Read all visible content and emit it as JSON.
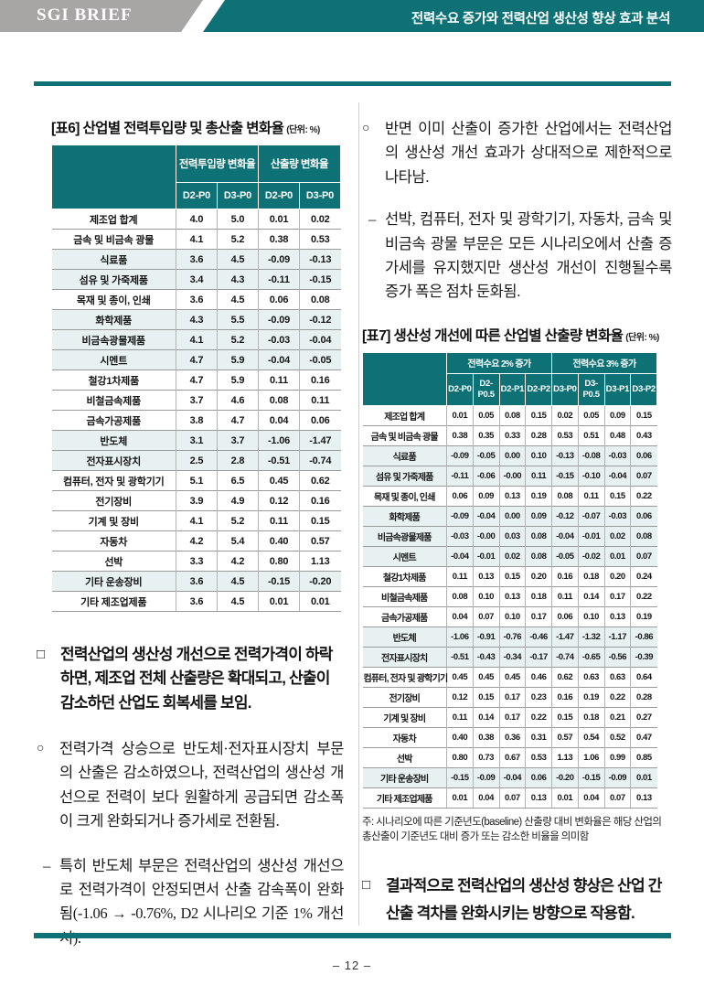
{
  "colors": {
    "teal": "#0e7176",
    "banner_gray": "#a8a6a4",
    "row_tint": "#e8f1f1"
  },
  "header": {
    "brand": "SGI BRIEF",
    "title": "전력수요 증가와 전력산업 생산성 향상 효과 분석"
  },
  "left": {
    "table6": {
      "caption": "[표6] 산업별 전력투입량 및 총산출 변화율",
      "unit": "(단위: %)",
      "col_groups": [
        {
          "label": "전력투입량 변화율",
          "span": 2
        },
        {
          "label": "산출량 변화율",
          "span": 2
        }
      ],
      "sub_headers": [
        "D2-P0",
        "D3-P0",
        "D2-P0",
        "D3-P0"
      ],
      "rows": [
        {
          "label": "제조업 합계",
          "values": [
            "4.0",
            "5.0",
            "0.01",
            "0.02"
          ],
          "bold": true,
          "tint": false
        },
        {
          "label": "금속 및 비금속 광물",
          "values": [
            "4.1",
            "5.2",
            "0.38",
            "0.53"
          ],
          "bold": false,
          "tint": false
        },
        {
          "label": "식료품",
          "values": [
            "3.6",
            "4.5",
            "-0.09",
            "-0.13"
          ],
          "bold": false,
          "tint": true
        },
        {
          "label": "섬유 및 가죽제품",
          "values": [
            "3.4",
            "4.3",
            "-0.11",
            "-0.15"
          ],
          "bold": false,
          "tint": true
        },
        {
          "label": "목재 및 종이, 인쇄",
          "values": [
            "3.6",
            "4.5",
            "0.06",
            "0.08"
          ],
          "bold": false,
          "tint": false
        },
        {
          "label": "화학제품",
          "values": [
            "4.3",
            "5.5",
            "-0.09",
            "-0.12"
          ],
          "bold": false,
          "tint": true
        },
        {
          "label": "비금속광물제품",
          "values": [
            "4.1",
            "5.2",
            "-0.03",
            "-0.04"
          ],
          "bold": false,
          "tint": true
        },
        {
          "label": "시멘트",
          "values": [
            "4.7",
            "5.9",
            "-0.04",
            "-0.05"
          ],
          "bold": false,
          "tint": true
        },
        {
          "label": "철강1차제품",
          "values": [
            "4.7",
            "5.9",
            "0.11",
            "0.16"
          ],
          "bold": false,
          "tint": false
        },
        {
          "label": "비철금속제품",
          "values": [
            "3.7",
            "4.6",
            "0.08",
            "0.11"
          ],
          "bold": false,
          "tint": false
        },
        {
          "label": "금속가공제품",
          "values": [
            "3.8",
            "4.7",
            "0.04",
            "0.06"
          ],
          "bold": false,
          "tint": false
        },
        {
          "label": "반도체",
          "values": [
            "3.1",
            "3.7",
            "-1.06",
            "-1.47"
          ],
          "bold": false,
          "tint": true
        },
        {
          "label": "전자표시장치",
          "values": [
            "2.5",
            "2.8",
            "-0.51",
            "-0.74"
          ],
          "bold": false,
          "tint": true
        },
        {
          "label": "컴퓨터, 전자 및 광학기기",
          "values": [
            "5.1",
            "6.5",
            "0.45",
            "0.62"
          ],
          "bold": false,
          "tint": false
        },
        {
          "label": "전기장비",
          "values": [
            "3.9",
            "4.9",
            "0.12",
            "0.16"
          ],
          "bold": false,
          "tint": false
        },
        {
          "label": "기계 및 장비",
          "values": [
            "4.1",
            "5.2",
            "0.11",
            "0.15"
          ],
          "bold": false,
          "tint": false
        },
        {
          "label": "자동차",
          "values": [
            "4.2",
            "5.4",
            "0.40",
            "0.57"
          ],
          "bold": false,
          "tint": false
        },
        {
          "label": "선박",
          "values": [
            "3.3",
            "4.2",
            "0.80",
            "1.13"
          ],
          "bold": false,
          "tint": false
        },
        {
          "label": "기타 운송장비",
          "values": [
            "3.6",
            "4.5",
            "-0.15",
            "-0.20"
          ],
          "bold": false,
          "tint": true
        },
        {
          "label": "기타 제조업제품",
          "values": [
            "3.6",
            "4.5",
            "0.01",
            "0.01"
          ],
          "bold": false,
          "tint": false
        }
      ]
    },
    "paragraphs": [
      {
        "marker": "□",
        "style": "box",
        "text": "전력산업의 생산성 개선으로 전력가격이 하락하면, 제조업 전체 산출량은 확대되고, 산출이 감소하던 산업도 회복세를 보임."
      },
      {
        "marker": "○",
        "style": "circle",
        "text": "전력가격 상승으로 반도체·전자표시장치 부문의 산출은 감소하였으나, 전력산업의 생산성 개선으로 전력이 보다 원활하게 공급되면 감소폭이 크게 완화되거나 증가세로 전환됨."
      },
      {
        "marker": "–",
        "style": "dash",
        "text": "특히 반도체 부문은 전력산업의 생산성 개선으로 전력가격이 안정되면서 산출 감속폭이 완화됨(-1.06 → -0.76%, D2 시나리오 기준 1% 개선 시)."
      }
    ]
  },
  "right": {
    "paragraphs_top": [
      {
        "marker": "○",
        "style": "circle",
        "text": "반면 이미 산출이 증가한 산업에서는 전력산업의 생산성 개선 효과가 상대적으로 제한적으로 나타남."
      },
      {
        "marker": "–",
        "style": "dash",
        "text": "선박, 컴퓨터, 전자 및 광학기기, 자동차, 금속 및 비금속 광물 부문은 모든 시나리오에서 산출 증가세를 유지했지만 생산성 개선이 진행될수록 증가 폭은 점차 둔화됨."
      }
    ],
    "table7": {
      "caption": "[표7] 생산성 개선에 따른 산업별 산출량 변화율",
      "unit": "(단위: %)",
      "col_groups": [
        {
          "label": "전력수요 2% 증가",
          "span": 4
        },
        {
          "label": "전력수요 3% 증가",
          "span": 4
        }
      ],
      "sub_headers": [
        "D2-P0",
        "D2-P0.5",
        "D2-P1",
        "D2-P2",
        "D3-P0",
        "D3-P0.5",
        "D3-P1",
        "D3-P2"
      ],
      "rows": [
        {
          "label": "제조업 합계",
          "values": [
            "0.01",
            "0.05",
            "0.08",
            "0.15",
            "0.02",
            "0.05",
            "0.09",
            "0.15"
          ],
          "bold": true,
          "tint": false
        },
        {
          "label": "금속 및 비금속 광물",
          "values": [
            "0.38",
            "0.35",
            "0.33",
            "0.28",
            "0.53",
            "0.51",
            "0.48",
            "0.43"
          ],
          "bold": false,
          "tint": false
        },
        {
          "label": "식료품",
          "values": [
            "-0.09",
            "-0.05",
            "0.00",
            "0.10",
            "-0.13",
            "-0.08",
            "-0.03",
            "0.06"
          ],
          "bold": false,
          "tint": true
        },
        {
          "label": "섬유 및 가죽제품",
          "values": [
            "-0.11",
            "-0.06",
            "-0.00",
            "0.11",
            "-0.15",
            "-0.10",
            "-0.04",
            "0.07"
          ],
          "bold": false,
          "tint": true
        },
        {
          "label": "목재 및 종이, 인쇄",
          "values": [
            "0.06",
            "0.09",
            "0.13",
            "0.19",
            "0.08",
            "0.11",
            "0.15",
            "0.22"
          ],
          "bold": false,
          "tint": false
        },
        {
          "label": "화학제품",
          "values": [
            "-0.09",
            "-0.04",
            "0.00",
            "0.09",
            "-0.12",
            "-0.07",
            "-0.03",
            "0.06"
          ],
          "bold": false,
          "tint": true
        },
        {
          "label": "비금속광물제품",
          "values": [
            "-0.03",
            "-0.00",
            "0.03",
            "0.08",
            "-0.04",
            "-0.01",
            "0.02",
            "0.08"
          ],
          "bold": false,
          "tint": true
        },
        {
          "label": "시멘트",
          "values": [
            "-0.04",
            "-0.01",
            "0.02",
            "0.08",
            "-0.05",
            "-0.02",
            "0.01",
            "0.07"
          ],
          "bold": false,
          "tint": true
        },
        {
          "label": "철강1차제품",
          "values": [
            "0.11",
            "0.13",
            "0.15",
            "0.20",
            "0.16",
            "0.18",
            "0.20",
            "0.24"
          ],
          "bold": false,
          "tint": false
        },
        {
          "label": "비철금속제품",
          "values": [
            "0.08",
            "0.10",
            "0.13",
            "0.18",
            "0.11",
            "0.14",
            "0.17",
            "0.22"
          ],
          "bold": false,
          "tint": false
        },
        {
          "label": "금속가공제품",
          "values": [
            "0.04",
            "0.07",
            "0.10",
            "0.17",
            "0.06",
            "0.10",
            "0.13",
            "0.19"
          ],
          "bold": false,
          "tint": false
        },
        {
          "label": "반도체",
          "values": [
            "-1.06",
            "-0.91",
            "-0.76",
            "-0.46",
            "-1.47",
            "-1.32",
            "-1.17",
            "-0.86"
          ],
          "bold": false,
          "tint": true
        },
        {
          "label": "전자표시장치",
          "values": [
            "-0.51",
            "-0.43",
            "-0.34",
            "-0.17",
            "-0.74",
            "-0.65",
            "-0.56",
            "-0.39"
          ],
          "bold": false,
          "tint": true
        },
        {
          "label": "컴퓨터, 전자 및 광학기기",
          "values": [
            "0.45",
            "0.45",
            "0.45",
            "0.46",
            "0.62",
            "0.63",
            "0.63",
            "0.64"
          ],
          "bold": false,
          "tint": false
        },
        {
          "label": "전기장비",
          "values": [
            "0.12",
            "0.15",
            "0.17",
            "0.23",
            "0.16",
            "0.19",
            "0.22",
            "0.28"
          ],
          "bold": false,
          "tint": false
        },
        {
          "label": "기계 및 장비",
          "values": [
            "0.11",
            "0.14",
            "0.17",
            "0.22",
            "0.15",
            "0.18",
            "0.21",
            "0.27"
          ],
          "bold": false,
          "tint": false
        },
        {
          "label": "자동차",
          "values": [
            "0.40",
            "0.38",
            "0.36",
            "0.31",
            "0.57",
            "0.54",
            "0.52",
            "0.47"
          ],
          "bold": false,
          "tint": false
        },
        {
          "label": "선박",
          "values": [
            "0.80",
            "0.73",
            "0.67",
            "0.53",
            "1.13",
            "1.06",
            "0.99",
            "0.85"
          ],
          "bold": false,
          "tint": false
        },
        {
          "label": "기타 운송장비",
          "values": [
            "-0.15",
            "-0.09",
            "-0.04",
            "0.06",
            "-0.20",
            "-0.15",
            "-0.09",
            "0.01"
          ],
          "bold": false,
          "tint": true
        },
        {
          "label": "기타 제조업제품",
          "values": [
            "0.01",
            "0.04",
            "0.07",
            "0.13",
            "0.01",
            "0.04",
            "0.07",
            "0.13"
          ],
          "bold": false,
          "tint": false
        }
      ],
      "note": "주: 시나리오에 따른 기준년도(baseline) 산출량 대비 변화율은 해당 산업의 총산출이 기준년도 대비 증가 또는 감소한 비율을 의미함"
    },
    "paragraphs_bottom": [
      {
        "marker": "□",
        "style": "box",
        "text": "결과적으로 전력산업의 생산성 향상은 산업 간 산출 격차를 완화시키는 방향으로 작용함."
      }
    ]
  },
  "footer": {
    "page": "– 12 –"
  }
}
